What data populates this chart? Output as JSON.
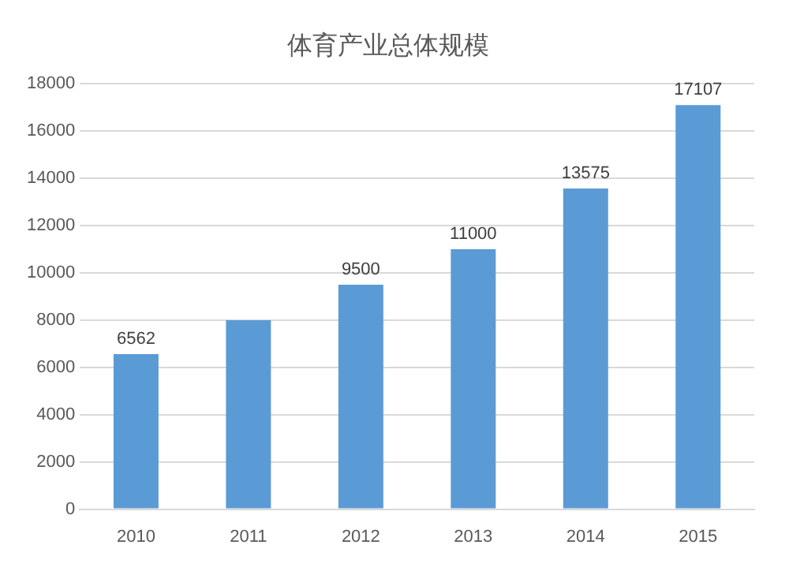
{
  "chart_data": {
    "type": "bar",
    "title": "体育产业总体规模",
    "categories": [
      "2010",
      "2011",
      "2012",
      "2013",
      "2014",
      "2015"
    ],
    "values": [
      6562,
      8000,
      9500,
      11000,
      13575,
      17107
    ],
    "value_labels": [
      "6562",
      null,
      "9500",
      "11000",
      "13575",
      "17107"
    ],
    "color": "#5b9bd5",
    "ylim": [
      0,
      18000
    ],
    "yticks": [
      0,
      2000,
      4000,
      6000,
      8000,
      10000,
      12000,
      14000,
      16000,
      18000
    ],
    "grid": "y"
  }
}
